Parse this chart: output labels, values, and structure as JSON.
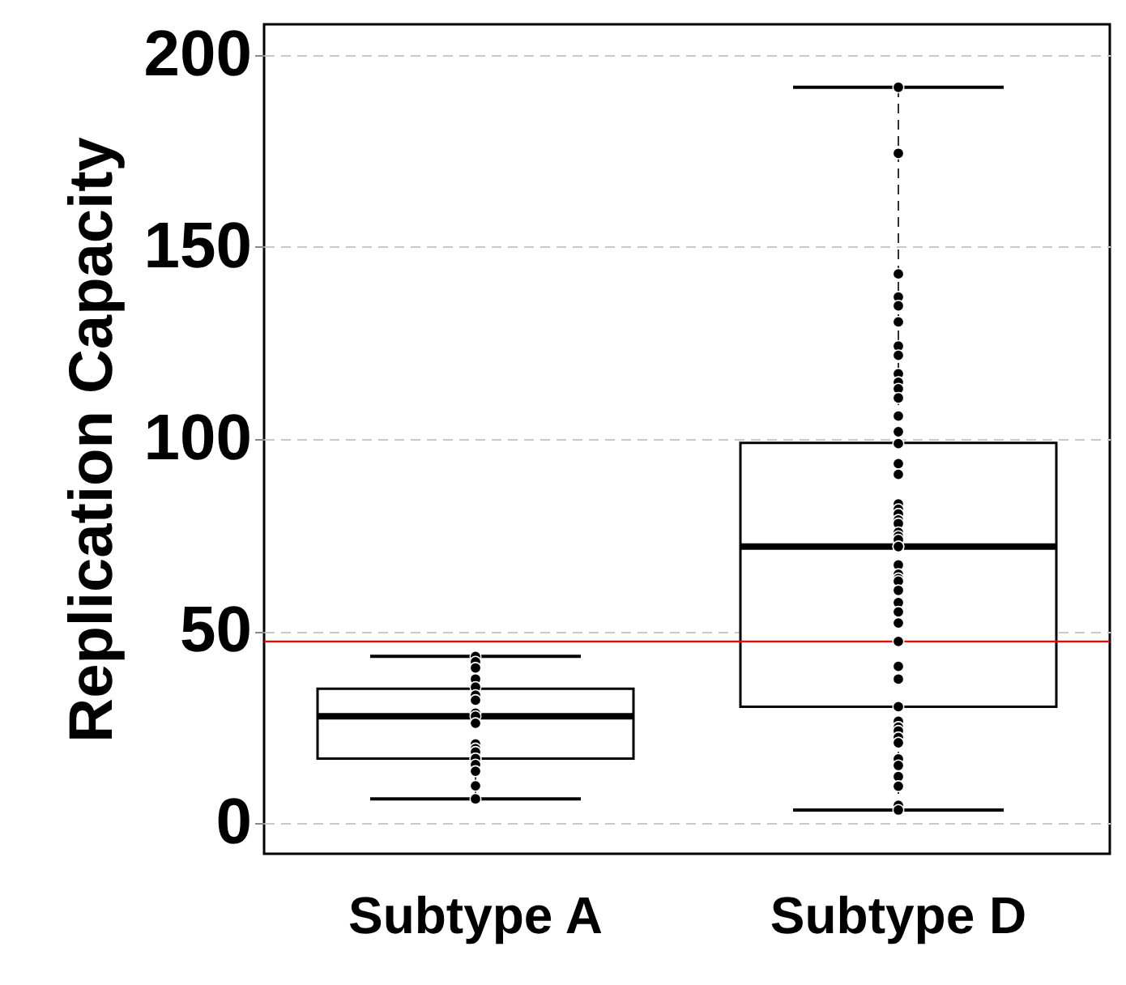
{
  "chart_data": {
    "type": "box",
    "ylabel": "Replication Capacity",
    "categories": [
      "Subtype A",
      "Subtype D"
    ],
    "boxes": [
      {
        "low": 6.3,
        "q1": 16.8,
        "median": 27.8,
        "q3": 35,
        "high": 43.4
      },
      {
        "low": 3.4,
        "q1": 30.3,
        "median": 72,
        "q3": 99,
        "high": 191.6
      }
    ],
    "series": [
      {
        "type": "scatter",
        "color": "#000000",
        "marker": "circle",
        "x": [
          "Subtype A",
          "Subtype A",
          "Subtype A",
          "Subtype A",
          "Subtype A",
          "Subtype A",
          "Subtype A",
          "Subtype A",
          "Subtype A",
          "Subtype A",
          "Subtype A",
          "Subtype A",
          "Subtype A",
          "Subtype A",
          "Subtype A",
          "Subtype A",
          "Subtype A",
          "Subtype A",
          "Subtype A",
          "Subtype D",
          "Subtype D",
          "Subtype D",
          "Subtype D",
          "Subtype D",
          "Subtype D",
          "Subtype D",
          "Subtype D",
          "Subtype D",
          "Subtype D",
          "Subtype D",
          "Subtype D",
          "Subtype D",
          "Subtype D",
          "Subtype D",
          "Subtype D",
          "Subtype D",
          "Subtype D",
          "Subtype D",
          "Subtype D",
          "Subtype D",
          "Subtype D",
          "Subtype D",
          "Subtype D",
          "Subtype D",
          "Subtype D",
          "Subtype D",
          "Subtype D",
          "Subtype D",
          "Subtype D",
          "Subtype D",
          "Subtype D",
          "Subtype D",
          "Subtype D",
          "Subtype D",
          "Subtype D",
          "Subtype D",
          "Subtype D",
          "Subtype D",
          "Subtype D",
          "Subtype D",
          "Subtype D",
          "Subtype D",
          "Subtype D",
          "Subtype D",
          "Subtype D",
          "Subtype D",
          "Subtype D",
          "Subtype D",
          "Subtype D",
          "Subtype D",
          "Subtype D",
          "Subtype D"
        ],
        "values": [
          43.4,
          42,
          40.4,
          37.5,
          35.4,
          33.3,
          32,
          28.6,
          27.8,
          26,
          20.6,
          19.4,
          18.5,
          16.8,
          16.8,
          15.2,
          13.5,
          9.7,
          6.3,
          191.6,
          174.4,
          143,
          137,
          134.7,
          130.5,
          124.2,
          121.8,
          117,
          114.8,
          113.1,
          110.7,
          106,
          101.9,
          98.8,
          93.6,
          90.8,
          83.1,
          81.7,
          80.5,
          80.5,
          78.9,
          78.9,
          78,
          75.7,
          74.7,
          73.8,
          72,
          72,
          67.2,
          64.8,
          63.7,
          63,
          60.6,
          57.4,
          55,
          52.1,
          47.3,
          40.8,
          37.5,
          30.3,
          26.5,
          25,
          24,
          22.3,
          20.9,
          20.9,
          16.7,
          15,
          12.1,
          9.6,
          4.6,
          3.4
        ]
      }
    ],
    "ylim": [
      -8,
      208
    ],
    "yticks": [
      0,
      50,
      100,
      150,
      200
    ],
    "grid": "y",
    "ref_lines": [
      {
        "axis": "y",
        "value": 47.3,
        "color": "#ff0000"
      }
    ]
  }
}
